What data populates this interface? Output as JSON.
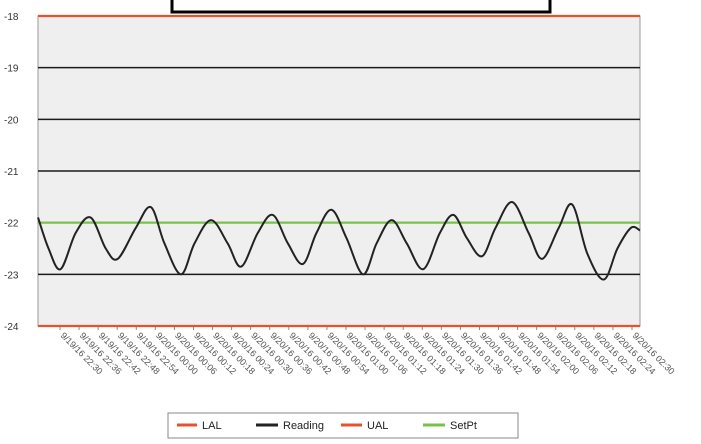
{
  "chart_data": {
    "type": "line",
    "title": "",
    "xlabel": "",
    "ylabel": "",
    "ylim": [
      -24,
      -18
    ],
    "y_ticks": [
      -18,
      -19,
      -20,
      -21,
      -22,
      -23,
      -24
    ],
    "grid": true,
    "legend_placement": "bottom-center",
    "x_tick_labels": [
      "9/19/16 22:30",
      "9/19/16 22:36",
      "9/19/16 22:42",
      "9/19/16 22:48",
      "9/19/16 22:54",
      "9/20/16 00:00",
      "9/20/16 00:06",
      "9/20/16 00:12",
      "9/20/16 00:18",
      "9/20/16 00:24",
      "9/20/16 00:30",
      "9/20/16 00:36",
      "9/20/16 00:42",
      "9/20/16 00:48",
      "9/20/16 00:54",
      "9/20/16 01:00",
      "9/20/16 01:06",
      "9/20/16 01:12",
      "9/20/16 01:18",
      "9/20/16 01:24",
      "9/20/16 01:30",
      "9/20/16 01:36",
      "9/20/16 01:42",
      "9/20/16 01:48",
      "9/20/16 01:54",
      "9/20/16 02:00",
      "9/20/16 02:06",
      "9/20/16 02:12",
      "9/20/16 02:18",
      "9/20/16 02:24",
      "9/20/16 02:30"
    ],
    "series": [
      {
        "name": "LAL",
        "color": "#e8502e",
        "constant": -24
      },
      {
        "name": "Reading",
        "color": "#222222",
        "x": [
          0,
          0.7,
          1.5,
          2.5,
          3.5,
          4.5,
          5.3,
          6.5,
          7.5,
          8.4,
          9.5,
          10.4,
          11.5,
          12.6,
          13.5,
          14.6,
          15.6,
          16.6,
          17.6,
          18.5,
          19.5,
          20.5,
          21.6,
          22.5,
          23.5,
          24.5,
          25.6,
          26.7,
          27.6,
          28.5,
          29.5,
          30.4,
          31.5,
          32.6,
          33.5,
          34.6,
          35.5,
          36.5,
          37.6,
          38.5,
          39.4,
          40
        ],
        "values": [
          -21.9,
          -22.5,
          -22.9,
          -22.2,
          -21.9,
          -22.5,
          -22.7,
          -22.1,
          -21.7,
          -22.4,
          -23.0,
          -22.4,
          -21.95,
          -22.4,
          -22.85,
          -22.2,
          -21.85,
          -22.4,
          -22.8,
          -22.2,
          -21.75,
          -22.3,
          -23.0,
          -22.4,
          -21.95,
          -22.4,
          -22.9,
          -22.2,
          -21.85,
          -22.3,
          -22.65,
          -22.1,
          -21.6,
          -22.2,
          -22.7,
          -22.1,
          -21.65,
          -22.6,
          -23.1,
          -22.5,
          -22.1,
          -22.15
        ]
      },
      {
        "name": "UAL",
        "color": "#e8502e",
        "constant": -18
      },
      {
        "name": "SetPt",
        "color": "#77c24a",
        "constant": -22
      }
    ]
  }
}
